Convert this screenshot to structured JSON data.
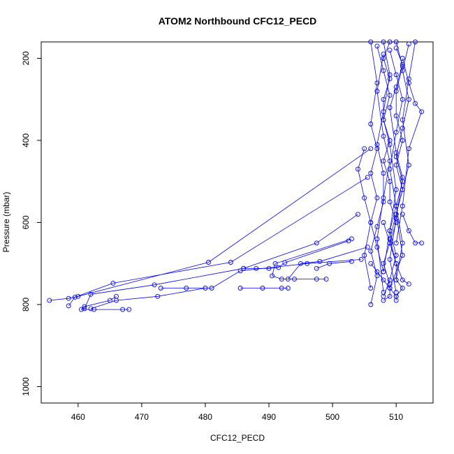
{
  "chart_data": {
    "type": "scatter",
    "title": "ATOM2 Northbound CFC12_PECD",
    "xlabel": "CFC12_PECD",
    "ylabel": "Pressure (mbar)",
    "xlim": [
      454.2,
      515.8
    ],
    "ylim": [
      1040,
      160
    ],
    "y_reversed": true,
    "grid": false,
    "legend": "none",
    "marker": "open-circle",
    "connected": true,
    "color": "#0000ff",
    "x_ticks": [
      460,
      470,
      480,
      490,
      500,
      510
    ],
    "y_ticks": [
      200,
      400,
      600,
      800,
      1000
    ],
    "series": [
      {
        "x": [
          509,
          508,
          509,
          508,
          508,
          509,
          508,
          509,
          509,
          510,
          509,
          508,
          509,
          509,
          508
        ],
        "y": [
          160,
          200,
          250,
          300,
          350,
          400,
          450,
          500,
          550,
          600,
          650,
          700,
          750,
          780,
          790
        ]
      },
      {
        "x": [
          510,
          511,
          510,
          510,
          511,
          510,
          511,
          510,
          509,
          510,
          510,
          511,
          510
        ],
        "y": [
          160,
          220,
          280,
          340,
          400,
          460,
          520,
          580,
          640,
          700,
          740,
          760,
          780
        ]
      },
      {
        "x": [
          512,
          511,
          512,
          511,
          510,
          511,
          510,
          509,
          510,
          509,
          508
        ],
        "y": [
          165,
          230,
          300,
          370,
          440,
          500,
          560,
          620,
          680,
          740,
          780
        ]
      },
      {
        "x": [
          506,
          507,
          506,
          507,
          506,
          507,
          506,
          505,
          506
        ],
        "y": [
          160,
          260,
          360,
          420,
          480,
          540,
          600,
          680,
          760
        ]
      },
      {
        "x": [
          508,
          509,
          508,
          507,
          508,
          508,
          507,
          506,
          507,
          506
        ],
        "y": [
          160,
          240,
          330,
          410,
          480,
          550,
          610,
          670,
          730,
          800
        ]
      },
      {
        "x": [
          513,
          512,
          511,
          512,
          510,
          511,
          509
        ],
        "y": [
          160,
          250,
          350,
          460,
          580,
          680,
          760
        ]
      },
      {
        "x": [
          511,
          512,
          513,
          514,
          512,
          511,
          510
        ],
        "y": [
          200,
          260,
          310,
          330,
          420,
          560,
          650
        ]
      },
      {
        "x": [
          505,
          504,
          505,
          506,
          507,
          508
        ],
        "y": [
          420,
          470,
          540,
          600,
          660,
          720
        ]
      },
      {
        "x": [
          509,
          510,
          511,
          510,
          509,
          510,
          511,
          510
        ],
        "y": [
          180,
          240,
          300,
          380,
          470,
          560,
          650,
          740
        ]
      },
      {
        "x": [
          507,
          508,
          509,
          508,
          509,
          510,
          509,
          508
        ],
        "y": [
          170,
          230,
          290,
          350,
          410,
          520,
          620,
          720
        ]
      },
      {
        "x": [
          510,
          511,
          510,
          509,
          510,
          511,
          510,
          509,
          510
        ],
        "y": [
          175,
          215,
          270,
          320,
          430,
          490,
          590,
          690,
          770
        ]
      },
      {
        "x": [
          508,
          507,
          508,
          509,
          508,
          507,
          508
        ],
        "y": [
          190,
          280,
          390,
          450,
          540,
          640,
          770
        ]
      },
      {
        "x": [
          506,
          480.5,
          460,
          458.5,
          455.5
        ],
        "y": [
          420,
          697,
          780,
          785,
          790
        ]
      },
      {
        "x": [
          505.5,
          484,
          465.5,
          459.5,
          458.5
        ],
        "y": [
          490,
          697,
          748,
          782,
          803
        ]
      },
      {
        "x": [
          504,
          497.5,
          486,
          472,
          462,
          461
        ],
        "y": [
          580,
          650,
          712,
          752,
          775,
          810
        ]
      },
      {
        "x": [
          503,
          491,
          490.5,
          492,
          494,
          497.5,
          499
        ],
        "y": [
          640,
          700,
          730,
          738,
          738,
          738,
          738
        ]
      },
      {
        "x": [
          502.5,
          492.5,
          491.5,
          490,
          488,
          486
        ],
        "y": [
          645,
          698,
          710,
          712,
          712,
          712
        ]
      },
      {
        "x": [
          505.5,
          498,
          495,
          493
        ],
        "y": [
          660,
          695,
          700,
          738
        ]
      },
      {
        "x": [
          504.5,
          496,
          485.5,
          481,
          477,
          473
        ],
        "y": [
          690,
          700,
          718,
          760,
          760,
          760
        ]
      },
      {
        "x": [
          466,
          465,
          461,
          460.5,
          462.5,
          467,
          468
        ],
        "y": [
          780,
          790,
          805,
          812,
          812,
          812,
          812
        ]
      },
      {
        "x": [
          462,
          466,
          472.5,
          480
        ],
        "y": [
          810,
          790,
          780,
          760
        ]
      },
      {
        "x": [
          485.5,
          489,
          492,
          493
        ],
        "y": [
          760,
          760,
          760,
          760
        ]
      },
      {
        "x": [
          497.5,
          499.5,
          503
        ],
        "y": [
          712,
          700,
          695
        ]
      },
      {
        "x": [
          511,
          512,
          513,
          514
        ],
        "y": [
          580,
          620,
          650,
          650
        ]
      },
      {
        "x": [
          508,
          509,
          510,
          511,
          512
        ],
        "y": [
          600,
          650,
          700,
          740,
          750
        ]
      },
      {
        "x": [
          506,
          507,
          508,
          509,
          510,
          510
        ],
        "y": [
          700,
          720,
          740,
          760,
          780,
          790
        ]
      }
    ]
  }
}
